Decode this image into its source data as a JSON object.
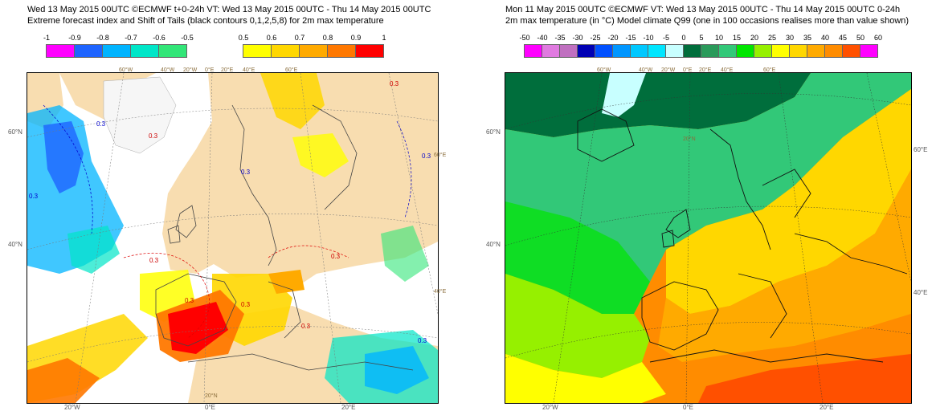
{
  "left_panel": {
    "title_line1": "Wed 13 May 2015 00UTC ©ECMWF t+0-24h  VT: Wed 13 May 2015 00UTC - Thu 14 May 2015 00UTC",
    "title_line2": "Extreme forecast index and Shift of Tails (black contours 0,1,2,5,8) for 2m max temperature",
    "legend_neg": {
      "labels": [
        "-1",
        "-0.9",
        "-0.8",
        "-0.7",
        "-0.6",
        "-0.5"
      ],
      "colors": [
        "#ff00ff",
        "#1e64ff",
        "#00b4ff",
        "#00e6c8",
        "#32e678"
      ]
    },
    "legend_pos": {
      "labels": [
        "0.5",
        "0.6",
        "0.7",
        "0.8",
        "0.9",
        "1"
      ],
      "colors": [
        "#ffff00",
        "#ffd700",
        "#ffaa00",
        "#ff7800",
        "#ff0000"
      ]
    },
    "axis_left": [
      "60°N",
      "40°N"
    ],
    "axis_bottom": [
      "20°W",
      "0°E",
      "20°E"
    ],
    "grid_labels": [
      "60°W",
      "40°W",
      "20°W",
      "0°E",
      "20°E",
      "40°E",
      "60°E",
      "60°E",
      "40°E",
      "20°N"
    ],
    "contour_labels": [
      "0.3",
      "0.3",
      "0.3",
      "0.3",
      "0.3",
      "0.3",
      "0.3",
      "0.3",
      "0.3",
      "0.3",
      "0.3",
      "0.3"
    ]
  },
  "right_panel": {
    "title_line1": "Mon 11 May 2015 00UTC ©ECMWF VT: Wed 13 May 2015 00UTC - Thu 14 May 2015 00UTC   0-24h",
    "title_line2": "2m max temperature (in °C)  Model climate Q99 (one in 100 occasions realises more than value shown)",
    "legend": {
      "labels": [
        "-50",
        "-40",
        "-35",
        "-30",
        "-25",
        "-20",
        "-15",
        "-10",
        "-5",
        "0",
        "5",
        "10",
        "15",
        "20",
        "25",
        "30",
        "35",
        "40",
        "45",
        "50",
        "60"
      ],
      "colors": [
        "#ff00ff",
        "#e07ae0",
        "#c070c0",
        "#0000b4",
        "#0050ff",
        "#0096ff",
        "#00c8ff",
        "#00e6ff",
        "#c8ffff",
        "#006e3c",
        "#2a9a5a",
        "#32c878",
        "#00e600",
        "#96f000",
        "#ffff00",
        "#ffd700",
        "#ffaa00",
        "#ff8c00",
        "#ff5000",
        "#ff00ff"
      ]
    },
    "axis_left": [
      "60°N",
      "40°N"
    ],
    "axis_right": [
      "60°E",
      "40°E"
    ],
    "axis_bottom": [
      "20°W",
      "0°E",
      "20°E"
    ],
    "grid_labels": [
      "60°W",
      "40°W",
      "20°W",
      "0°E",
      "20°E",
      "40°E",
      "60°E",
      "20°N"
    ]
  }
}
